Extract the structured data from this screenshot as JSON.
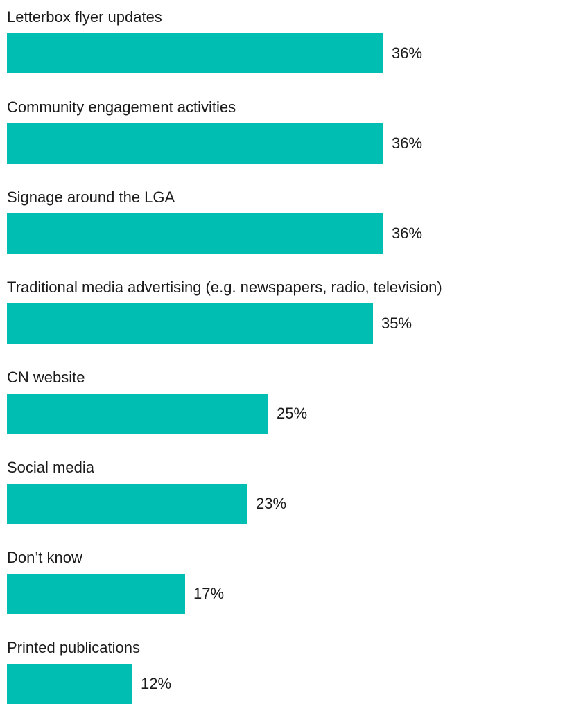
{
  "chart_data": {
    "type": "bar",
    "orientation": "horizontal",
    "categories": [
      "Letterbox flyer updates",
      "Community engagement activities",
      "Signage around the LGA",
      "Traditional media advertising (e.g. newspapers, radio, television)",
      "CN website",
      "Social media",
      "Don’t know",
      "Printed publications"
    ],
    "values": [
      36,
      36,
      36,
      35,
      25,
      23,
      17,
      12
    ],
    "value_labels": [
      "36%",
      "36%",
      "36%",
      "35%",
      "25%",
      "23%",
      "17%",
      "12%"
    ],
    "unit": "%",
    "xlim": [
      0,
      53
    ],
    "grid": false,
    "legend": "none",
    "bar_color": "#00bfb2"
  }
}
